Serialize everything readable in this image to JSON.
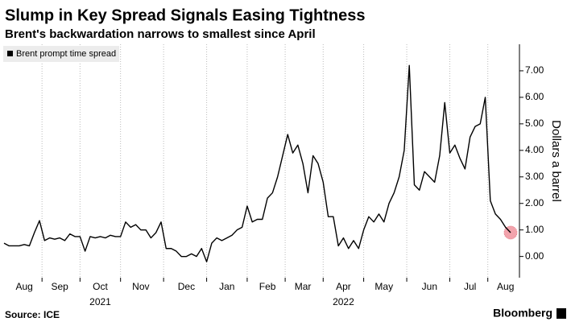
{
  "chart_data": {
    "type": "line",
    "title": "Slump in Key Spread Signals Easing Tightness",
    "subtitle": "Brent's backwardation narrows to smallest since April",
    "y_axis_label": "Dollars a barrel",
    "source": "Source: ICE",
    "brand": "Bloomberg",
    "year_labels": [
      "2021",
      "2022"
    ],
    "categories": [
      null,
      null,
      null,
      null,
      "Aug",
      null,
      null,
      null,
      null,
      null,
      null,
      "Sep",
      null,
      null,
      null,
      null,
      null,
      null,
      null,
      "Oct",
      null,
      null,
      null,
      null,
      null,
      null,
      null,
      "Nov",
      null,
      null,
      null,
      null,
      null,
      null,
      null,
      null,
      "Dec",
      null,
      null,
      null,
      null,
      null,
      null,
      null,
      "Jan",
      null,
      null,
      null,
      null,
      null,
      null,
      null,
      "Feb",
      null,
      null,
      null,
      null,
      null,
      null,
      "Mar",
      null,
      null,
      null,
      null,
      null,
      null,
      null,
      "Apr",
      null,
      null,
      null,
      null,
      null,
      null,
      null,
      "May",
      null,
      null,
      null,
      null,
      null,
      null,
      null,
      null,
      "Jun",
      null,
      null,
      null,
      null,
      null,
      null,
      null,
      "Jul",
      null,
      null,
      null,
      null,
      null,
      null,
      "Aug",
      null
    ],
    "series": [
      {
        "name": "Brent prompt time spread",
        "color": "#000000",
        "values": [
          0.5,
          0.4,
          0.4,
          0.4,
          0.45,
          0.4,
          0.9,
          1.35,
          0.6,
          0.7,
          0.65,
          0.7,
          0.6,
          0.85,
          0.75,
          0.75,
          0.2,
          0.75,
          0.7,
          0.75,
          0.7,
          0.8,
          0.75,
          0.75,
          1.3,
          1.1,
          1.2,
          1.0,
          1.0,
          0.7,
          0.9,
          1.3,
          0.3,
          0.3,
          0.2,
          0.0,
          0.0,
          0.1,
          0.0,
          0.3,
          -0.2,
          0.5,
          0.7,
          0.6,
          0.7,
          0.8,
          1.0,
          1.1,
          1.9,
          1.3,
          1.4,
          1.4,
          2.2,
          2.4,
          3.0,
          3.8,
          4.6,
          3.9,
          4.2,
          3.5,
          2.4,
          3.8,
          3.5,
          2.8,
          1.5,
          1.5,
          0.4,
          0.7,
          0.3,
          0.6,
          0.3,
          1.0,
          1.5,
          1.3,
          1.6,
          1.3,
          2.0,
          2.4,
          3.0,
          4.0,
          7.2,
          2.7,
          2.5,
          3.2,
          3.0,
          2.8,
          3.8,
          5.8,
          3.9,
          4.2,
          3.7,
          3.3,
          4.5,
          4.9,
          5.0,
          6.0,
          2.1,
          1.6,
          1.4,
          1.1,
          0.9
        ]
      }
    ],
    "ylim": [
      -0.8,
      8.0
    ],
    "yticks": [
      {
        "value": 0,
        "label": "0.00"
      },
      {
        "value": 1,
        "label": "1.00"
      },
      {
        "value": 2,
        "label": "2.00"
      },
      {
        "value": 3,
        "label": "3.00"
      },
      {
        "value": 4,
        "label": "4.00"
      },
      {
        "value": 5,
        "label": "5.00"
      },
      {
        "value": 6,
        "label": "6.00"
      },
      {
        "value": 7,
        "label": "7.00"
      }
    ],
    "y_axis_side": "right",
    "grid": "vertical-dotted",
    "legend": "top-left",
    "highlight_last": true,
    "highlight_color": "#f19aa4"
  }
}
